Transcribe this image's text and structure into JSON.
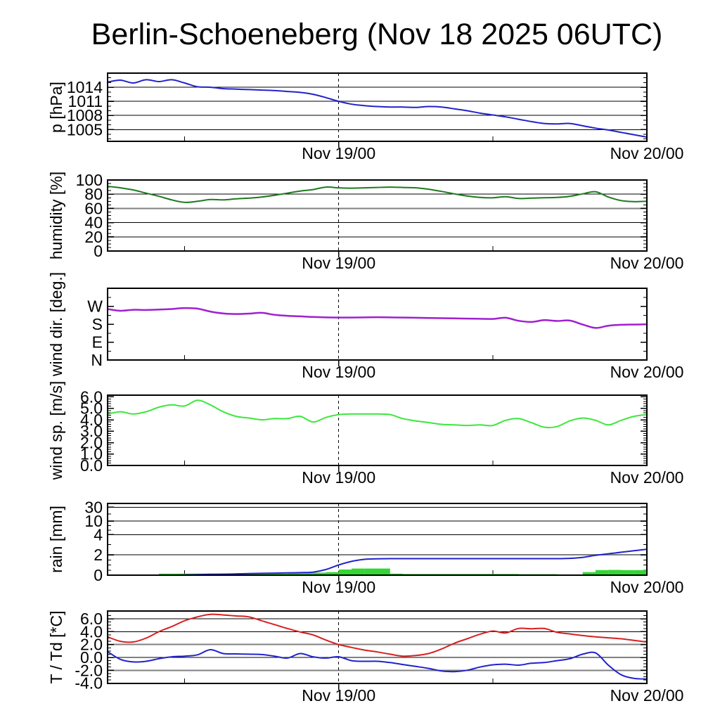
{
  "title": "Berlin-Schoeneberg (Nov 18 2025 06UTC)",
  "x_axis": {
    "start_hour": 6,
    "end_hour": 48,
    "dashed_line_hour": 24,
    "minor_tick_hours": [
      12,
      36
    ],
    "day_labels": [
      {
        "text": "Nov 19/00",
        "hour": 24
      },
      {
        "text": "Nov 20/00",
        "hour": 48
      }
    ]
  },
  "colors": {
    "pressure": "#2222cc",
    "humidity": "#1f7a1f",
    "wind_dir": "#a020d0",
    "wind_speed": "#3ce83c",
    "rain_line": "#2222cc",
    "rain_bar": "#33d633",
    "temperature": "#d82020",
    "dewpoint": "#2222cc",
    "grid_thin": "#000000",
    "grid_thick": "#808080",
    "frame": "#000000"
  },
  "chart_data": [
    {
      "id": "pressure",
      "type": "line",
      "ylabel": "p [hPa]",
      "ylim": [
        1002.5,
        1017.0
      ],
      "yticks": [
        {
          "v": 1005,
          "t": "1005"
        },
        {
          "v": 1008,
          "t": "1008"
        },
        {
          "v": 1011,
          "t": "1011"
        },
        {
          "v": 1014,
          "t": "1014"
        }
      ],
      "grid_thin": [
        1005,
        1008,
        1014
      ],
      "grid_thick": [
        1011
      ],
      "minor_step": 1,
      "series": [
        {
          "name": "pressure",
          "kind": "line",
          "color_key": "pressure",
          "width": 2,
          "values": [
            1015.1,
            1015.5,
            1014.9,
            1015.6,
            1015.2,
            1015.6,
            1014.9,
            1014.1,
            1014.0,
            1013.7,
            1013.6,
            1013.5,
            1013.4,
            1013.3,
            1013.1,
            1012.9,
            1012.5,
            1011.8,
            1011.0,
            1010.4,
            1010.1,
            1009.9,
            1009.8,
            1009.8,
            1009.7,
            1009.9,
            1009.8,
            1009.4,
            1009.0,
            1008.5,
            1008.1,
            1007.7,
            1007.2,
            1006.7,
            1006.3,
            1006.2,
            1006.3,
            1005.8,
            1005.3,
            1004.9,
            1004.4,
            1003.9,
            1003.4
          ]
        }
      ]
    },
    {
      "id": "humidity",
      "type": "line",
      "ylabel": "humidity [%]",
      "ylim": [
        0,
        100
      ],
      "yticks": [
        {
          "v": 0,
          "t": "0"
        },
        {
          "v": 20,
          "t": "20"
        },
        {
          "v": 40,
          "t": "40"
        },
        {
          "v": 60,
          "t": "60"
        },
        {
          "v": 80,
          "t": "80"
        },
        {
          "v": 100,
          "t": "100"
        }
      ],
      "grid_thin": [
        40,
        80
      ],
      "grid_thick": [
        20,
        60
      ],
      "minor_step": 5,
      "series": [
        {
          "name": "humidity",
          "kind": "line",
          "color_key": "humidity",
          "width": 2,
          "values": [
            91,
            89,
            86,
            81.5,
            77,
            72,
            68.5,
            70,
            72.5,
            72,
            73.5,
            74.5,
            76,
            78.5,
            81.5,
            84.5,
            86.5,
            90,
            89,
            88.5,
            89,
            89.5,
            90,
            89.5,
            89,
            87,
            84,
            80.5,
            77.5,
            75.5,
            75,
            76.5,
            74,
            74.5,
            75,
            75.5,
            77,
            80.5,
            83.5,
            76,
            71,
            69.5,
            70
          ]
        }
      ]
    },
    {
      "id": "wind_direction",
      "type": "line",
      "ylabel": "wind dir. [deg.]",
      "ylim": [
        0,
        360
      ],
      "yticks": [
        {
          "v": 0,
          "t": "N"
        },
        {
          "v": 90,
          "t": "E"
        },
        {
          "v": 180,
          "t": "S"
        },
        {
          "v": 270,
          "t": "W"
        }
      ],
      "grid_thin": [],
      "grid_thick": [],
      "minor_step": 45,
      "series": [
        {
          "name": "wind-direction",
          "kind": "line",
          "color_key": "wind_dir",
          "width": 2.5,
          "values": [
            256,
            247,
            252,
            251,
            253,
            256,
            261,
            258,
            243,
            234,
            231,
            233,
            237,
            227,
            222,
            219,
            216,
            214,
            213,
            213,
            214,
            215,
            214,
            213,
            212,
            211,
            210,
            209,
            208,
            207,
            206,
            212,
            197,
            191,
            200,
            196,
            198,
            178,
            161,
            172,
            177,
            178,
            179
          ]
        }
      ]
    },
    {
      "id": "wind_speed",
      "type": "line",
      "ylabel": "wind sp. [m/s]",
      "ylim": [
        0,
        6.15
      ],
      "yticks": [
        {
          "v": 0,
          "t": "0.0"
        },
        {
          "v": 1,
          "t": "1.0"
        },
        {
          "v": 2,
          "t": "2.0"
        },
        {
          "v": 3,
          "t": "3.0"
        },
        {
          "v": 4,
          "t": "4.0"
        },
        {
          "v": 5,
          "t": "5.0"
        },
        {
          "v": 6,
          "t": "6.0"
        }
      ],
      "grid_thin": [],
      "grid_thick": [],
      "minor_step": 0.2,
      "series": [
        {
          "name": "wind-speed",
          "kind": "line",
          "color_key": "wind_speed",
          "width": 2,
          "values": [
            4.5,
            4.7,
            4.5,
            4.7,
            5.1,
            5.3,
            5.2,
            5.7,
            5.3,
            4.7,
            4.3,
            4.15,
            4.0,
            4.1,
            4.1,
            4.3,
            3.8,
            4.2,
            4.45,
            4.5,
            4.5,
            4.5,
            4.45,
            4.1,
            3.9,
            3.75,
            3.6,
            3.55,
            3.5,
            3.55,
            3.5,
            3.95,
            4.1,
            3.75,
            3.35,
            3.4,
            3.9,
            4.15,
            3.95,
            3.55,
            3.95,
            4.3,
            4.45
          ]
        }
      ]
    },
    {
      "id": "rain",
      "type": "bar+line",
      "ylabel": "rain [mm]",
      "scale_breaks": [
        [
          0,
          0
        ],
        [
          2,
          0.284
        ],
        [
          4,
          0.566
        ],
        [
          10,
          0.753
        ],
        [
          30,
          0.948
        ],
        [
          33,
          1.0
        ]
      ],
      "yticks": [
        {
          "v": 0,
          "t": "0"
        },
        {
          "v": 2,
          "t": "2"
        },
        {
          "v": 4,
          "t": "4"
        },
        {
          "v": 10,
          "t": "10"
        },
        {
          "v": 30,
          "t": "30"
        }
      ],
      "grid_thin": [
        4,
        30
      ],
      "grid_thick": [
        2,
        10
      ],
      "minor_ticks_at": [
        0.5,
        1,
        1.5,
        3,
        6,
        8,
        20
      ],
      "series": [
        {
          "name": "rain-hourly",
          "kind": "bar",
          "color_key": "rain_bar",
          "values": [
            0,
            0,
            0,
            0,
            0,
            0.15,
            0.15,
            0.15,
            0.15,
            0.15,
            0.15,
            0.2,
            0.15,
            0.15,
            0.15,
            0.2,
            0.2,
            0.25,
            0.3,
            0.55,
            0.65,
            0.65,
            0.65,
            0.15,
            0.12,
            0.12,
            0.12,
            0.12,
            0.12,
            0.12,
            0.12,
            0.12,
            0.12,
            0.1,
            0.1,
            0.1,
            0.05,
            0.05,
            0.3,
            0.5,
            0.52,
            0.5,
            0.5
          ]
        },
        {
          "name": "rain-accumulated",
          "kind": "line",
          "color_key": "rain_line",
          "width": 2,
          "values": [
            0,
            0,
            0,
            0,
            0,
            0,
            0.02,
            0.05,
            0.08,
            0.1,
            0.12,
            0.15,
            0.18,
            0.2,
            0.22,
            0.25,
            0.3,
            0.55,
            1.0,
            1.35,
            1.55,
            1.6,
            1.62,
            1.62,
            1.62,
            1.62,
            1.62,
            1.62,
            1.62,
            1.62,
            1.62,
            1.62,
            1.62,
            1.62,
            1.62,
            1.62,
            1.65,
            1.75,
            1.95,
            2.1,
            2.25,
            2.4,
            2.55
          ]
        }
      ]
    },
    {
      "id": "temperature",
      "type": "line",
      "ylabel": "T / Td [*C]",
      "ylim": [
        -4.04,
        7.21
      ],
      "yticks": [
        {
          "v": -4,
          "t": "-4.0"
        },
        {
          "v": -2,
          "t": "-2.0"
        },
        {
          "v": 0,
          "t": "0.0"
        },
        {
          "v": 2,
          "t": "2.0"
        },
        {
          "v": 4,
          "t": "4.0"
        },
        {
          "v": 6,
          "t": "6.0"
        }
      ],
      "grid_thin": [
        0,
        4,
        6
      ],
      "grid_thick": [
        -2,
        2
      ],
      "minor_step": 0.5,
      "series": [
        {
          "name": "temperature",
          "kind": "line",
          "color_key": "temperature",
          "width": 2,
          "values": [
            3.2,
            2.5,
            2.4,
            3.0,
            4.0,
            4.8,
            5.7,
            6.3,
            6.7,
            6.6,
            6.45,
            6.3,
            5.7,
            5.1,
            4.5,
            3.95,
            3.5,
            2.7,
            2.0,
            1.55,
            1.15,
            0.85,
            0.5,
            0.2,
            0.3,
            0.6,
            1.3,
            2.2,
            2.9,
            3.6,
            4.1,
            3.8,
            4.5,
            4.45,
            4.5,
            3.9,
            3.65,
            3.4,
            3.2,
            3.05,
            2.9,
            2.65,
            2.4
          ]
        },
        {
          "name": "dewpoint",
          "kind": "line",
          "color_key": "dewpoint",
          "width": 2,
          "values": [
            0.9,
            -0.3,
            -0.7,
            -0.6,
            -0.2,
            0.1,
            0.2,
            0.4,
            1.2,
            0.6,
            0.55,
            0.5,
            0.45,
            0.2,
            -0.1,
            0.6,
            0.1,
            -0.1,
            0.1,
            -0.5,
            -0.6,
            -0.6,
            -0.8,
            -1.1,
            -1.4,
            -1.7,
            -2.1,
            -2.2,
            -2.0,
            -1.5,
            -1.15,
            -1.05,
            -1.2,
            -0.9,
            -0.8,
            -0.5,
            -0.2,
            0.5,
            0.7,
            -1.2,
            -2.7,
            -3.25,
            -3.35
          ]
        }
      ]
    }
  ]
}
